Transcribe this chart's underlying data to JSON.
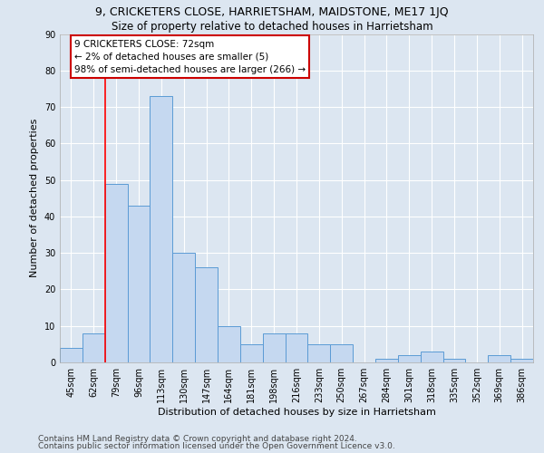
{
  "title": "9, CRICKETERS CLOSE, HARRIETSHAM, MAIDSTONE, ME17 1JQ",
  "subtitle": "Size of property relative to detached houses in Harrietsham",
  "xlabel": "Distribution of detached houses by size in Harrietsham",
  "ylabel": "Number of detached properties",
  "footer_line1": "Contains HM Land Registry data © Crown copyright and database right 2024.",
  "footer_line2": "Contains public sector information licensed under the Open Government Licence v3.0.",
  "annotation_line1": "9 CRICKETERS CLOSE: 72sqm",
  "annotation_line2": "← 2% of detached houses are smaller (5)",
  "annotation_line3": "98% of semi-detached houses are larger (266) →",
  "categories": [
    "45sqm",
    "62sqm",
    "79sqm",
    "96sqm",
    "113sqm",
    "130sqm",
    "147sqm",
    "164sqm",
    "181sqm",
    "198sqm",
    "216sqm",
    "233sqm",
    "250sqm",
    "267sqm",
    "284sqm",
    "301sqm",
    "318sqm",
    "335sqm",
    "352sqm",
    "369sqm",
    "386sqm"
  ],
  "values": [
    4,
    8,
    49,
    43,
    73,
    30,
    26,
    10,
    5,
    8,
    8,
    5,
    5,
    0,
    1,
    2,
    3,
    1,
    0,
    2,
    1
  ],
  "bar_color": "#c5d8f0",
  "bar_edge_color": "#5b9bd5",
  "red_line_x": 1.5,
  "ylim": [
    0,
    90
  ],
  "yticks": [
    0,
    10,
    20,
    30,
    40,
    50,
    60,
    70,
    80,
    90
  ],
  "background_color": "#dce6f1",
  "plot_bg_color": "#dce6f1",
  "grid_color": "#ffffff",
  "annotation_box_color": "#ffffff",
  "annotation_box_edge_color": "#cc0000",
  "title_fontsize": 9,
  "subtitle_fontsize": 8.5,
  "xlabel_fontsize": 8,
  "ylabel_fontsize": 8,
  "tick_fontsize": 7,
  "annotation_fontsize": 7.5,
  "footer_fontsize": 6.5
}
